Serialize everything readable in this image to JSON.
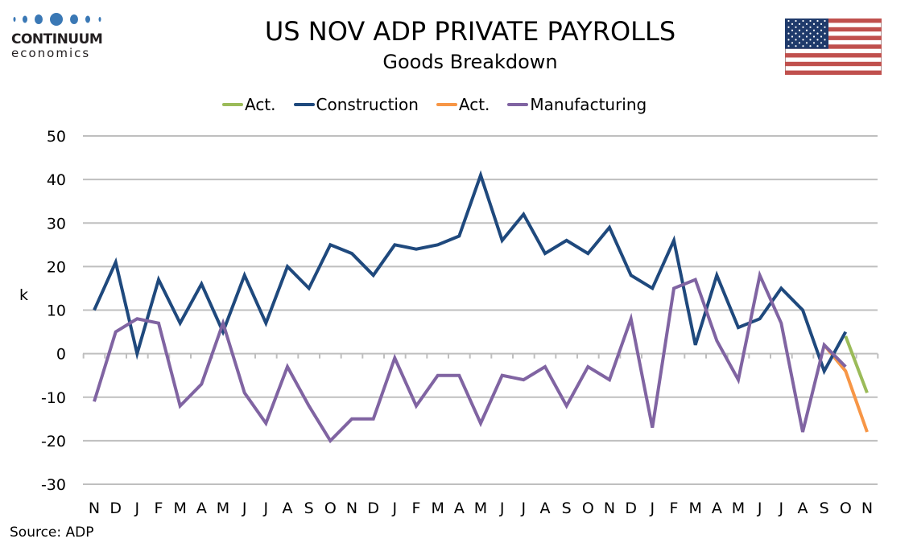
{
  "brand": {
    "name_line1": "CONTINUUM",
    "name_line2": "economics",
    "dot_color": "#3a78b5"
  },
  "header": {
    "title": "US NOV ADP PRIVATE PAYROLLS",
    "subtitle": "Goods Breakdown",
    "flag_icon": "us-flag-icon"
  },
  "footer": {
    "source": "Source: ADP"
  },
  "chart_data": {
    "type": "line",
    "title": "US NOV ADP PRIVATE PAYROLLS",
    "subtitle": "Goods Breakdown",
    "xlabel": "",
    "ylabel": "k",
    "ylim": [
      -30,
      50
    ],
    "yticks": [
      50,
      40,
      30,
      20,
      10,
      0,
      -10,
      -20,
      -30
    ],
    "grid": true,
    "legend_position": "top-center",
    "x": [
      "N",
      "D",
      "J",
      "F",
      "M",
      "A",
      "M",
      "J",
      "J",
      "A",
      "S",
      "O",
      "N",
      "D",
      "J",
      "F",
      "M",
      "A",
      "M",
      "J",
      "J",
      "A",
      "S",
      "O",
      "N",
      "D",
      "J",
      "F",
      "M",
      "A",
      "M",
      "J",
      "J",
      "A",
      "S",
      "O",
      "N"
    ],
    "series": [
      {
        "name": "Act.",
        "color": "#9bbb59",
        "start_index": 35,
        "values": [
          4,
          -9
        ]
      },
      {
        "name": "Construction",
        "color": "#1f497d",
        "start_index": 0,
        "values": [
          10,
          21,
          0,
          17,
          7,
          16,
          5,
          18,
          7,
          20,
          15,
          25,
          23,
          18,
          25,
          24,
          25,
          27,
          41,
          26,
          32,
          23,
          26,
          23,
          29,
          18,
          15,
          26,
          2,
          18,
          6,
          8,
          15,
          10,
          -4,
          5
        ]
      },
      {
        "name": "Act.",
        "color": "#f79646",
        "start_index": 34,
        "values": [
          2,
          -4,
          -18
        ]
      },
      {
        "name": "Manufacturing",
        "color": "#8064a2",
        "start_index": 0,
        "values": [
          -11,
          5,
          8,
          7,
          -12,
          -7,
          7,
          -9,
          -16,
          -3,
          -12,
          -20,
          -15,
          -15,
          -1,
          -12,
          -5,
          -5,
          -16,
          -5,
          -6,
          -3,
          -12,
          -3,
          -6,
          8,
          -17,
          15,
          17,
          3,
          -6,
          18,
          7,
          -18,
          2,
          -3
        ]
      }
    ]
  }
}
